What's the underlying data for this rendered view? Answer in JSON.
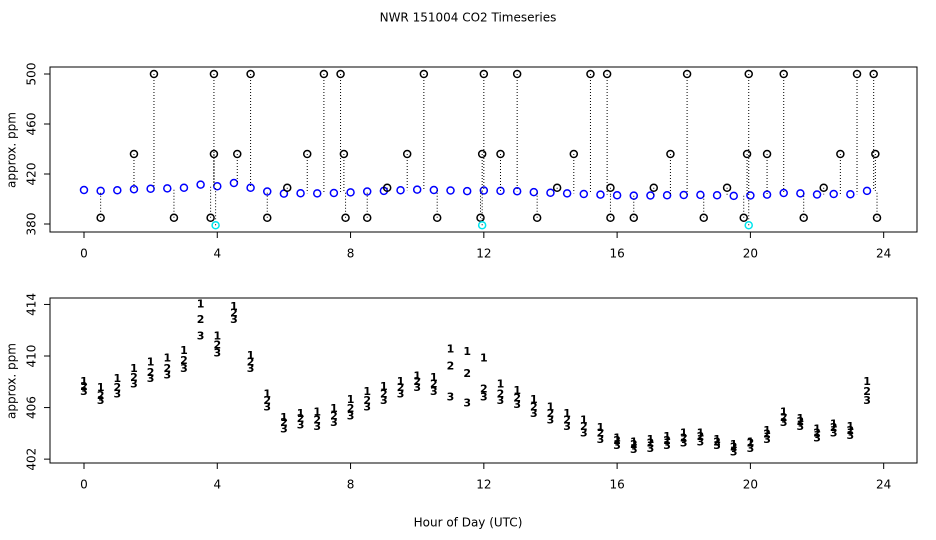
{
  "chart_data": [
    {
      "type": "scatter",
      "title": "NWR  151004  CO2 Timeseries",
      "y_label": "approx. ppm",
      "xlim": [
        -1.02,
        25.0
      ],
      "xticks": [
        0,
        4,
        8,
        12,
        16,
        20,
        24
      ],
      "ylim": [
        373.6,
        505.6
      ],
      "yticks": [
        380,
        420,
        460,
        500
      ],
      "x": [
        0,
        0.5,
        1,
        1.5,
        2,
        2.5,
        3,
        3.5,
        4,
        4.5,
        5,
        5.5,
        6,
        6.5,
        7,
        7.5,
        8,
        8.5,
        9,
        9.5,
        10,
        10.5,
        11,
        11.5,
        12,
        12.5,
        13,
        13.5,
        14,
        14.5,
        15,
        15.5,
        16,
        16.5,
        17,
        17.5,
        18,
        18.5,
        19,
        19.5,
        20,
        20.5,
        21,
        21.5,
        22,
        22.5,
        23,
        23.5
      ],
      "series": [
        {
          "color": "#0000ff",
          "values": [
            407.2,
            406.5,
            407,
            407.8,
            408.2,
            408.5,
            409,
            411.5,
            410.2,
            412.8,
            409,
            406,
            404.3,
            404.6,
            404.5,
            404.8,
            405.3,
            406,
            406.5,
            407,
            407.5,
            407.2,
            406.8,
            406.3,
            406.8,
            406.5,
            406.2,
            405.5,
            405,
            404.5,
            404,
            403.5,
            403,
            402.7,
            402.8,
            403,
            403.2,
            403.3,
            403,
            402.5,
            402.8,
            403.5,
            404.8,
            404.5,
            403.6,
            404,
            403.8,
            406.5
          ]
        },
        {
          "color": "#000000",
          "x": [
            0.5,
            1.5,
            2.1,
            2.7,
            3.8,
            3.9,
            3.9,
            4.6,
            5,
            5.5,
            6.1,
            6.7,
            7.2,
            7.7,
            7.8,
            7.85,
            8.5,
            9.1,
            9.7,
            10.2,
            10.6,
            11.9,
            11.95,
            12,
            12.5,
            13,
            13.6,
            14.2,
            14.7,
            15.2,
            15.7,
            15.8,
            15.8,
            16.5,
            17.1,
            17.6,
            18.1,
            18.6,
            19.3,
            19.8,
            19.9,
            19.95,
            20.5,
            21,
            21.6,
            22.2,
            22.7,
            23.2,
            23.7,
            23.75,
            23.8
          ],
          "values": [
            385,
            436,
            500,
            385,
            385,
            436,
            500,
            436,
            500,
            385,
            409,
            436,
            500,
            500,
            436,
            385,
            385,
            409,
            436,
            500,
            385,
            385,
            436,
            500,
            436,
            500,
            385,
            409,
            436,
            500,
            500,
            409,
            385,
            385,
            409,
            436,
            500,
            385,
            409,
            385,
            436,
            500,
            436,
            500,
            385,
            409,
            436,
            500,
            500,
            436,
            385
          ]
        },
        {
          "color": "#00e5ee",
          "x": [
            3.95,
            11.95,
            19.95
          ],
          "values": [
            379,
            379,
            379
          ]
        }
      ]
    },
    {
      "type": "scatter",
      "y_label": "approx. ppm",
      "x_label": "Hour of Day (UTC)",
      "xlim": [
        -1.02,
        25.0
      ],
      "xticks": [
        0,
        4,
        8,
        12,
        16,
        20,
        24
      ],
      "ylim": [
        401.7,
        414.5
      ],
      "yticks": [
        402,
        406,
        410,
        414
      ],
      "x": [
        0,
        0.5,
        1,
        1.5,
        2,
        2.5,
        3,
        3.5,
        4,
        4.5,
        5,
        5.5,
        6,
        6.5,
        7,
        7.5,
        8,
        8.5,
        9,
        9.5,
        10,
        10.5,
        11,
        11.5,
        12,
        12.5,
        13,
        13.5,
        14,
        14.5,
        15,
        15.5,
        16,
        16.5,
        17,
        17.5,
        18,
        18.5,
        19,
        19.5,
        20,
        20.5,
        21,
        21.5,
        22,
        22.5,
        23,
        23.5
      ],
      "series": [
        {
          "color": "#ff0000",
          "marker": "1",
          "values": [
            408,
            407.5,
            408.2,
            409,
            409.5,
            409.8,
            410.4,
            414,
            411.5,
            413.8,
            410,
            407,
            405.2,
            405.5,
            405.6,
            405.9,
            406.6,
            407.2,
            407.6,
            408,
            408.4,
            408.3,
            410.5,
            410.3,
            409.8,
            407.8,
            407.3,
            406.6,
            406,
            405.5,
            405,
            404.4,
            403.6,
            403.3,
            403.5,
            403.7,
            404,
            404,
            403.5,
            403.1,
            403.3,
            404.2,
            405.6,
            405.1,
            404.3,
            404.7,
            404.5,
            408
          ]
        },
        {
          "color": "#00cc00",
          "marker": "2",
          "values": [
            407.6,
            406.9,
            407.5,
            408.3,
            408.7,
            409,
            409.6,
            412.8,
            410.8,
            413.3,
            409.5,
            406.5,
            404.8,
            405.1,
            405,
            405.3,
            405.9,
            406.5,
            407,
            407.5,
            408,
            407.8,
            409.2,
            408.6,
            407.4,
            407,
            406.7,
            406,
            405.5,
            405,
            404.5,
            404,
            403.4,
            403.1,
            403.2,
            403.4,
            403.6,
            403.7,
            403.3,
            402.9,
            403.2,
            403.9,
            405.2,
            404.9,
            404,
            404.4,
            404.2,
            407.2
          ]
        },
        {
          "color": "#0000ff",
          "marker": "3",
          "values": [
            407.2,
            406.5,
            407,
            407.8,
            408.2,
            408.5,
            409,
            411.5,
            410.2,
            412.8,
            409,
            406,
            404.3,
            404.6,
            404.5,
            404.8,
            405.3,
            406,
            406.5,
            407,
            407.5,
            407.2,
            406.8,
            406.3,
            406.8,
            406.5,
            406.2,
            405.5,
            405,
            404.5,
            404,
            403.5,
            403,
            402.7,
            402.8,
            403,
            403.2,
            403.3,
            403,
            402.5,
            402.8,
            403.5,
            404.8,
            404.5,
            403.6,
            404,
            403.8,
            406.5
          ]
        }
      ]
    }
  ]
}
